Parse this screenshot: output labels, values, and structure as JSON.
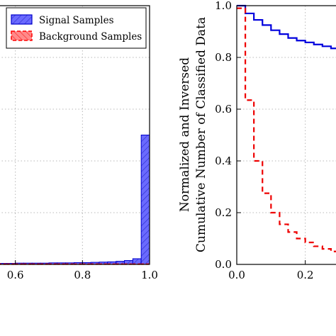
{
  "chart_data": [
    {
      "type": "bar",
      "title": "",
      "xlabel": "",
      "ylabel": "",
      "xlim": [
        0.55,
        1.0
      ],
      "ylim": [
        0,
        1.0
      ],
      "xticks": [
        "0.6",
        "0.8",
        "1.0"
      ],
      "grid": true,
      "legend_position": "top-right",
      "bin_width": 0.025,
      "bin_left_edges": [
        0.55,
        0.575,
        0.6,
        0.625,
        0.65,
        0.675,
        0.7,
        0.725,
        0.75,
        0.775,
        0.8,
        0.825,
        0.85,
        0.875,
        0.9,
        0.925,
        0.95,
        0.975
      ],
      "series": [
        {
          "name": "Signal Samples",
          "color": "#5a5aff",
          "style": "solid-hatched",
          "values": [
            0.004,
            0.004,
            0.005,
            0.005,
            0.005,
            0.005,
            0.006,
            0.006,
            0.006,
            0.007,
            0.007,
            0.008,
            0.009,
            0.01,
            0.012,
            0.015,
            0.022,
            0.5
          ]
        },
        {
          "name": "Background Samples",
          "color": "#ff4040",
          "style": "dashed-hatched",
          "values": [
            0.002,
            0.002,
            0.002,
            0.002,
            0.002,
            0.002,
            0.002,
            0.002,
            0.002,
            0.002,
            0.002,
            0.002,
            0.002,
            0.002,
            0.002,
            0.002,
            0.002,
            0.002
          ]
        }
      ]
    },
    {
      "type": "line",
      "title": "",
      "xlabel": "",
      "ylabel": "Normalized and Inversed Cumulative Number of Classified Data",
      "ylabel_lines": [
        "Normalized and Inversed",
        "Cumulative Number of Classified Data"
      ],
      "xlim": [
        0.0,
        0.3
      ],
      "ylim": [
        0.0,
        1.0
      ],
      "xticks": [
        "0.0",
        "0.2"
      ],
      "yticks": [
        "0.0",
        "0.2",
        "0.4",
        "0.6",
        "0.8",
        "1.0"
      ],
      "grid": true,
      "series": [
        {
          "color": "#0000dd",
          "style": "solid-step",
          "x": [
            0.0,
            0.025,
            0.05,
            0.075,
            0.1,
            0.125,
            0.15,
            0.175,
            0.2,
            0.225,
            0.25,
            0.275,
            0.3
          ],
          "y": [
            1.0,
            0.97,
            0.945,
            0.925,
            0.905,
            0.89,
            0.875,
            0.865,
            0.858,
            0.85,
            0.843,
            0.835,
            0.83
          ]
        },
        {
          "color": "#ee0000",
          "style": "dashed-step",
          "x": [
            0.0,
            0.025,
            0.05,
            0.075,
            0.1,
            0.125,
            0.15,
            0.175,
            0.2,
            0.225,
            0.25,
            0.275,
            0.3
          ],
          "y": [
            0.99,
            0.635,
            0.4,
            0.275,
            0.2,
            0.155,
            0.125,
            0.1,
            0.085,
            0.07,
            0.06,
            0.05,
            0.045
          ]
        }
      ]
    }
  ]
}
